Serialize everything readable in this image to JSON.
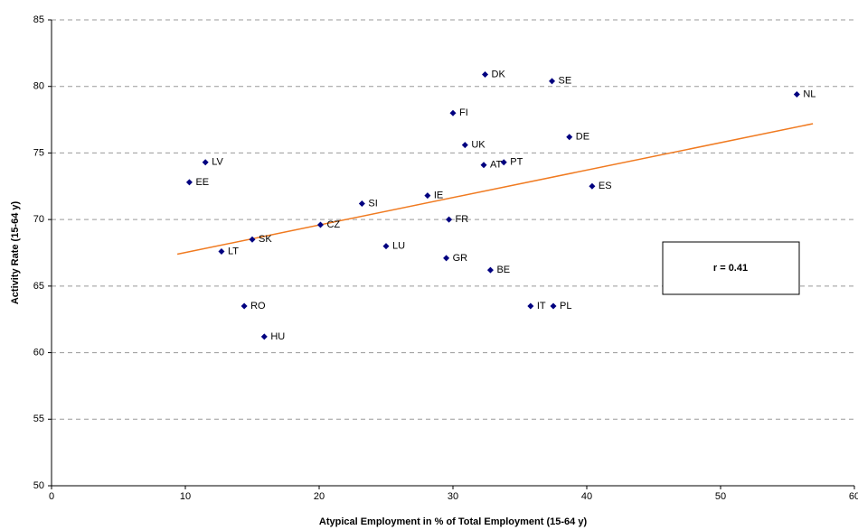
{
  "chart_data": {
    "type": "scatter",
    "x_label": "Atypical Employment in % of Total Employment (15-64 y)",
    "y_label": "Activity Rate (15-64 y)",
    "annotation": "r = 0.41",
    "labels": [
      "DK",
      "SE",
      "NL",
      "FI",
      "UK",
      "DE",
      "AT",
      "PT",
      "LV",
      "EE",
      "ES",
      "IE",
      "SI",
      "FR",
      "CZ",
      "SK",
      "LU",
      "LT",
      "GR",
      "BE",
      "RO",
      "IT",
      "PL",
      "HU"
    ],
    "x": [
      32.4,
      37.4,
      55.7,
      30.0,
      30.9,
      38.7,
      32.3,
      33.8,
      11.5,
      10.3,
      40.4,
      28.1,
      23.2,
      29.7,
      20.1,
      15.0,
      25.0,
      12.7,
      29.5,
      32.8,
      14.4,
      35.8,
      37.5,
      15.9
    ],
    "values": [
      80.9,
      80.4,
      79.4,
      78.0,
      75.6,
      76.2,
      74.1,
      74.3,
      74.3,
      72.8,
      72.5,
      71.8,
      71.2,
      70.0,
      69.6,
      68.5,
      68.0,
      67.6,
      67.1,
      66.2,
      63.5,
      63.5,
      63.5,
      61.2
    ],
    "color": "#000080",
    "trendline": {
      "x": [
        9.4,
        56.9
      ],
      "y": [
        67.4,
        77.2
      ],
      "color": "#f07a20"
    },
    "xlim": [
      0,
      60
    ],
    "xticks": [
      0,
      10,
      20,
      30,
      40,
      50,
      60
    ],
    "ylim": [
      50,
      85
    ],
    "yticks": [
      50,
      55,
      60,
      65,
      70,
      75,
      80,
      85
    ],
    "grid": true
  }
}
